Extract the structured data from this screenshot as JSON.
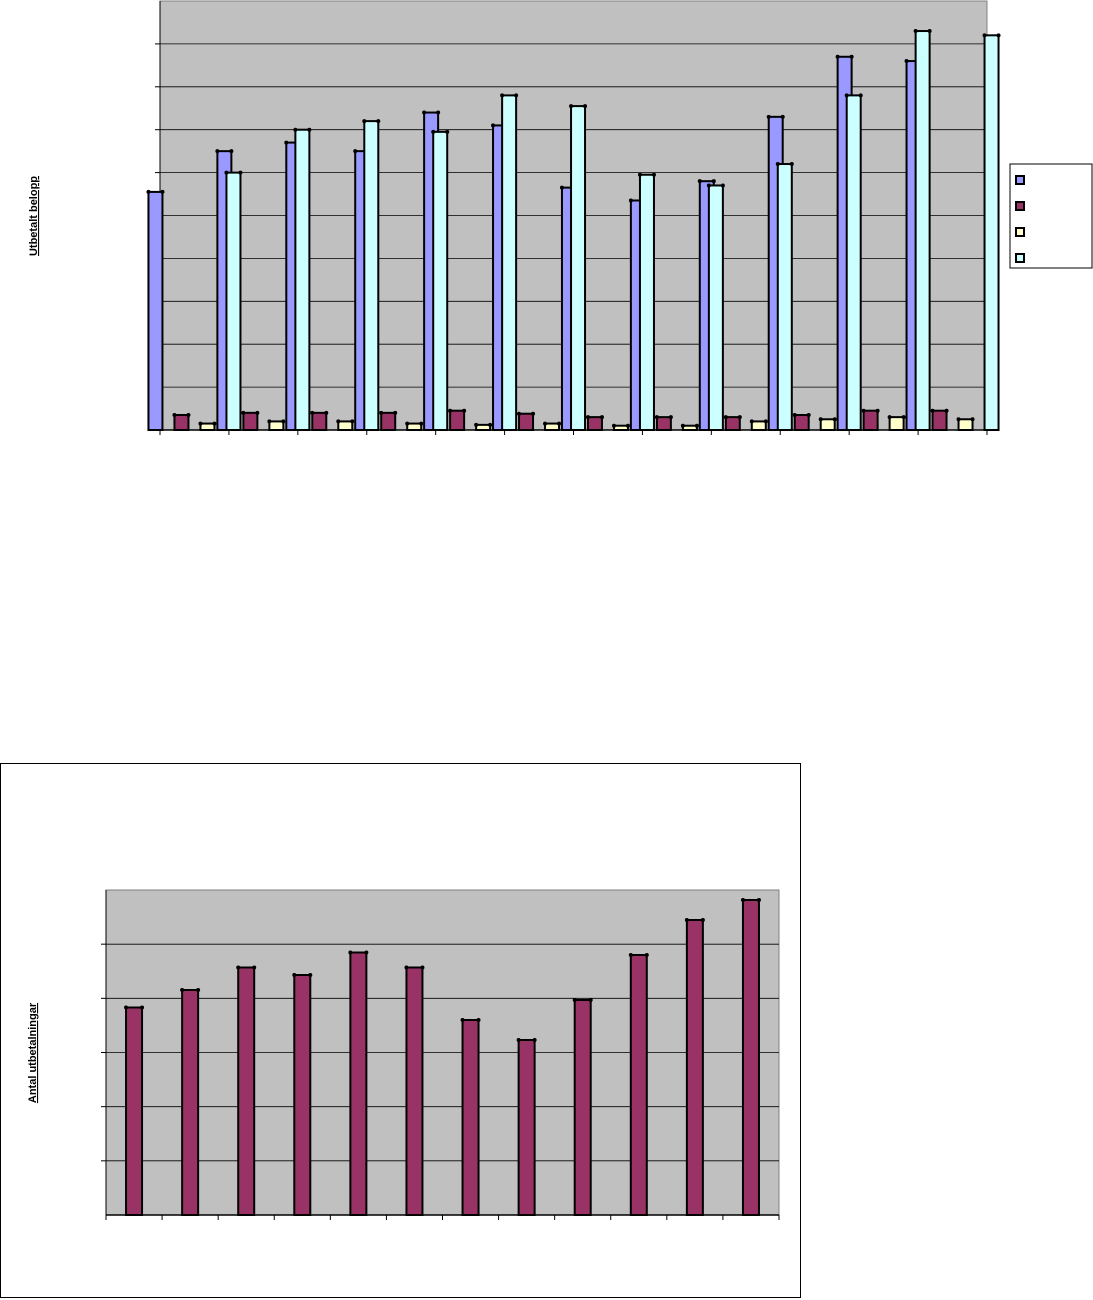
{
  "chart_data": [
    {
      "type": "bar",
      "ylabel": "Utbetalt belopp",
      "categories": [
        "",
        "",
        "",
        "",
        "",
        "",
        "",
        "",
        "",
        "",
        "",
        ""
      ],
      "ylim": [
        0,
        100
      ],
      "grid": true,
      "legend": "right",
      "series": [
        {
          "color": "#9999ff",
          "values": [
            55.5,
            65,
            67,
            65,
            74,
            71,
            56.5,
            53.5,
            58,
            73,
            87,
            86
          ]
        },
        {
          "color": "#993366",
          "values": [
            3.5,
            4,
            4,
            4,
            4.5,
            3.8,
            3,
            3,
            3,
            3.5,
            4.5,
            4.5
          ]
        },
        {
          "color": "#ffffcc",
          "values": [
            1.5,
            2,
            2,
            1.5,
            1.2,
            1.5,
            1,
            1,
            2,
            2.5,
            3,
            2.5
          ]
        },
        {
          "color": "#ccffff",
          "values": [
            60,
            70,
            72,
            69.5,
            78,
            75.5,
            59.5,
            57,
            62,
            78,
            93,
            92
          ]
        }
      ]
    },
    {
      "type": "bar",
      "ylabel": "Antal utbetalningar",
      "categories": [
        "",
        "",
        "",
        "",
        "",
        "",
        "",
        "",
        "",
        "",
        "",
        ""
      ],
      "ylim": [
        0,
        130
      ],
      "grid": true,
      "series": [
        {
          "color": "#993366",
          "values": [
            83,
            90,
            99,
            96,
            105,
            99,
            78,
            70,
            86,
            104,
            118,
            126
          ]
        }
      ]
    }
  ]
}
